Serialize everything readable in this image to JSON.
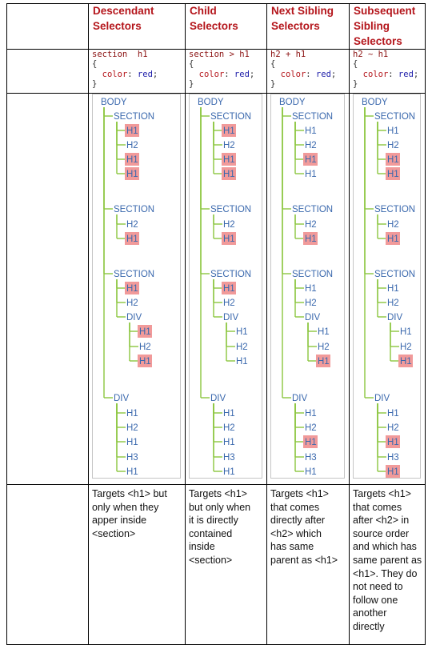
{
  "columns": [
    {
      "title_lines": [
        "Descendant",
        "Selectors"
      ],
      "code": {
        "selector": "section  h1",
        "property": "color",
        "value": "red"
      },
      "description_lines": [
        "Targets <h1> but",
        "only when they",
        "apper inside",
        "<section>"
      ]
    },
    {
      "title_lines": [
        "Child",
        "Selectors"
      ],
      "code": {
        "selector": "section > h1",
        "property": "color",
        "value": "red"
      },
      "description_lines": [
        "Targets <h1>",
        "but only when",
        "it is directly",
        "contained",
        "inside",
        "<section>"
      ]
    },
    {
      "title_lines": [
        "Next Sibling",
        "Selectors"
      ],
      "code": {
        "selector": "h2 + h1",
        "property": "color",
        "value": "red"
      },
      "description_lines": [
        "Targets <h1>",
        "that comes",
        "directly after",
        "<h2> which",
        "has same",
        "parent as <h1>"
      ]
    },
    {
      "title_lines": [
        "Subsequent",
        "Sibling",
        "Selectors"
      ],
      "code": {
        "selector": "h2 ~ h1",
        "property": "color",
        "value": "red"
      },
      "description_lines": [
        "Targets <h1>",
        "that comes",
        "after <h2> in",
        "source order",
        "and which has",
        "same parent as",
        "<h1>. They do",
        "not need to",
        "follow one",
        "another",
        "directly"
      ]
    }
  ],
  "code_braces": {
    "open": "{",
    "close": "}"
  },
  "tree_nodes": [
    {
      "label": "BODY",
      "depth": 0
    },
    {
      "label": "SECTION",
      "depth": 1
    },
    {
      "label": "H1",
      "depth": 2
    },
    {
      "label": "H2",
      "depth": 2
    },
    {
      "label": "H1",
      "depth": 2
    },
    {
      "label": "H1",
      "depth": 2
    },
    {
      "label": "SECTION",
      "depth": 1
    },
    {
      "label": "H2",
      "depth": 2
    },
    {
      "label": "H1",
      "depth": 2
    },
    {
      "label": "SECTION",
      "depth": 1
    },
    {
      "label": "H1",
      "depth": 2
    },
    {
      "label": "H2",
      "depth": 2
    },
    {
      "label": "DIV",
      "depth": 2
    },
    {
      "label": "H1",
      "depth": 3
    },
    {
      "label": "H2",
      "depth": 3
    },
    {
      "label": "H1",
      "depth": 3
    },
    {
      "label": "DIV",
      "depth": 1
    },
    {
      "label": "H1",
      "depth": 2
    },
    {
      "label": "H2",
      "depth": 2
    },
    {
      "label": "H1",
      "depth": 2
    },
    {
      "label": "H3",
      "depth": 2
    },
    {
      "label": "H1",
      "depth": 2
    }
  ],
  "highlighted_nodes_per_column": [
    [
      2,
      4,
      5,
      8,
      10,
      13,
      15
    ],
    [
      2,
      4,
      5,
      8,
      10
    ],
    [
      4,
      8,
      15,
      19
    ],
    [
      4,
      5,
      8,
      15,
      19,
      21
    ]
  ],
  "colors": {
    "title": "#b4151b",
    "node_text": "#3a68ad",
    "tree_line": "#8cc63f",
    "highlight": "#f19a9a",
    "border": "#000000"
  }
}
